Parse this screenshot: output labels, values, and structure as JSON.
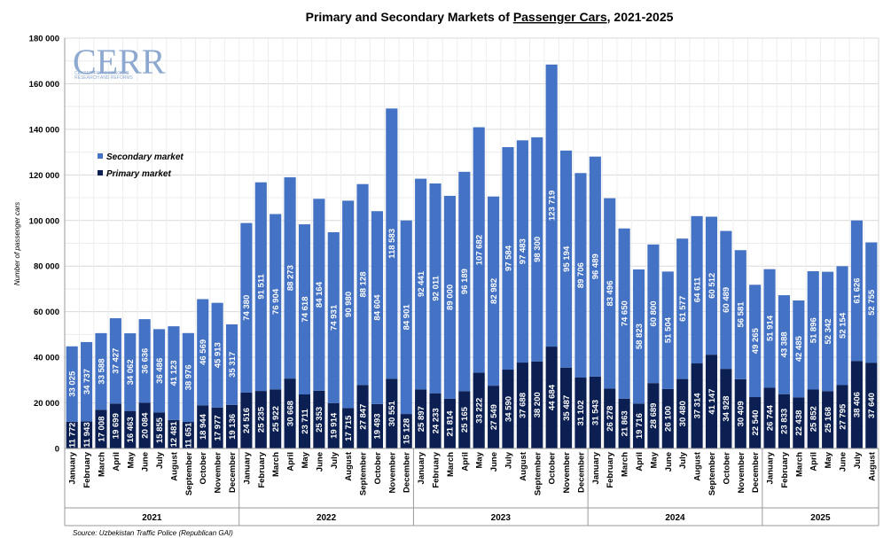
{
  "chart_data": {
    "type": "bar",
    "stacked": true,
    "title_parts": {
      "before": "Primary and Secondary Markets of ",
      "underlined": "Passenger Cars",
      "after": ", 2021-2025"
    },
    "ylabel": "Number of passenger cars",
    "ylim": [
      0,
      180000
    ],
    "yticks": [
      "0",
      "20 000",
      "40 000",
      "60 000",
      "80 000",
      "100 000",
      "120 000",
      "140 000",
      "160 000",
      "180 000"
    ],
    "grid": true,
    "legend_placement": "upper-left",
    "years": [
      {
        "label": "2021",
        "months": 12
      },
      {
        "label": "2022",
        "months": 12
      },
      {
        "label": "2023",
        "months": 12
      },
      {
        "label": "2024",
        "months": 12
      },
      {
        "label": "2025",
        "months": 8
      }
    ],
    "categories": [
      "January",
      "February",
      "March",
      "April",
      "May",
      "June",
      "July",
      "August",
      "September",
      "October",
      "November",
      "December",
      "January",
      "February",
      "March",
      "April",
      "May",
      "June",
      "July",
      "August",
      "September",
      "October",
      "November",
      "December",
      "January",
      "February",
      "March",
      "April",
      "May",
      "June",
      "July",
      "August",
      "September",
      "October",
      "November",
      "December",
      "January",
      "February",
      "March",
      "April",
      "May",
      "June",
      "July",
      "August",
      "September",
      "October",
      "November",
      "December",
      "January",
      "February",
      "March",
      "April",
      "May",
      "June",
      "July",
      "August"
    ],
    "series": [
      {
        "name": "Primary market",
        "color": "#0b1f52",
        "values": [
          11772,
          11943,
          17008,
          19699,
          16463,
          20084,
          15855,
          12481,
          11651,
          18944,
          17977,
          19136,
          24516,
          25235,
          25922,
          30668,
          23711,
          25353,
          19914,
          17715,
          27847,
          19493,
          30551,
          15128,
          25897,
          24233,
          21814,
          25165,
          33222,
          27549,
          34590,
          37688,
          38200,
          44684,
          35487,
          31102,
          31543,
          26278,
          21863,
          19716,
          28689,
          26100,
          30480,
          37314,
          41147,
          34928,
          30409,
          22540,
          26744,
          23833,
          22438,
          25852,
          25168,
          27795,
          38406,
          37640
        ],
        "labels": [
          "11 772",
          "11 943",
          "17 008",
          "19 699",
          "16 463",
          "20 084",
          "15 855",
          "12 481",
          "11 651",
          "18 944",
          "17 977",
          "19 136",
          "24 516",
          "25 235",
          "25 922",
          "30 668",
          "23 711",
          "25 353",
          "19 914",
          "17 715",
          "27 847",
          "19 493",
          "30 551",
          "15 128",
          "25 897",
          "24 233",
          "21 814",
          "25 165",
          "33 222",
          "27 549",
          "34 590",
          "37 688",
          "38 200",
          "44 684",
          "35 487",
          "31 102",
          "31 543",
          "26 278",
          "21 863",
          "19 716",
          "28 689",
          "26 100",
          "30 480",
          "37 314",
          "41 147",
          "34 928",
          "30 409",
          "22 540",
          "26 744",
          "23 833",
          "22 438",
          "25 852",
          "25 168",
          "27 795",
          "38 406",
          "37 640"
        ]
      },
      {
        "name": "Secondary market",
        "color": "#4472c4",
        "values": [
          33025,
          34737,
          33588,
          37427,
          34062,
          36636,
          36486,
          41123,
          38976,
          46569,
          45913,
          35317,
          74380,
          91511,
          76904,
          88273,
          74618,
          84164,
          74931,
          90980,
          88128,
          84604,
          118583,
          84901,
          92441,
          92011,
          89000,
          96189,
          107682,
          82982,
          97584,
          97483,
          98300,
          123719,
          95194,
          89706,
          96489,
          83496,
          74650,
          58823,
          60800,
          51504,
          61577,
          64611,
          60512,
          60489,
          56581,
          49265,
          51914,
          43388,
          42485,
          51896,
          52342,
          52154,
          61626,
          52755
        ],
        "labels": [
          "33 025",
          "34 737",
          "33 588",
          "37 427",
          "34 062",
          "36 636",
          "36 486",
          "41 123",
          "38 976",
          "46 569",
          "45 913",
          "35 317",
          "74 380",
          "91 511",
          "76 904",
          "88 273",
          "74 618",
          "84 164",
          "74 931",
          "90 980",
          "88 128",
          "84 604",
          "118 583",
          "84 901",
          "92 441",
          "92 011",
          "89 000",
          "96 189",
          "107 682",
          "82 982",
          "97 584",
          "97 483",
          "98 300",
          "123 719",
          "95 194",
          "89 706",
          "96 489",
          "83 496",
          "74 650",
          "58 823",
          "60 800",
          "51 504",
          "61 577",
          "64 611",
          "60 512",
          "60 489",
          "56 581",
          "49 265",
          "51 914",
          "43 388",
          "42 485",
          "51 896",
          "52 342",
          "52 154",
          "61 626",
          "52 755"
        ]
      }
    ],
    "source": "Source: Uzbekistan Traffic Police (Republican GAI)"
  },
  "logo": {
    "text": "CERR",
    "line1": "CENTER FOR ECONOMIC",
    "line2": "RESEARCH AND REFORMS",
    "color": "#8ea9cf"
  }
}
